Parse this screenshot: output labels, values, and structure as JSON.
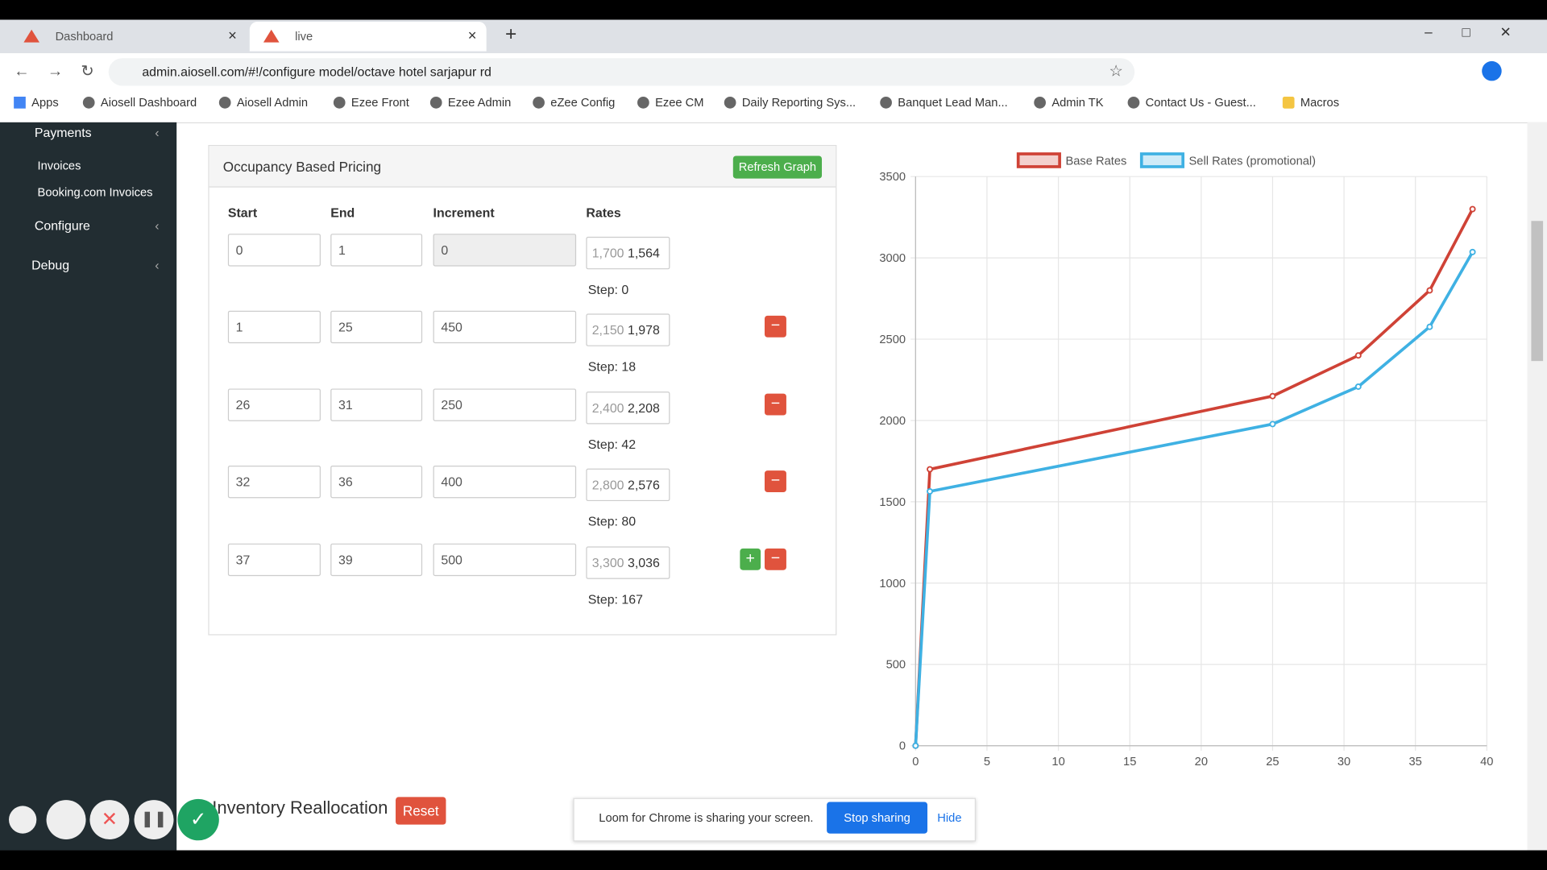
{
  "tabs": [
    {
      "title": "Dashboard"
    },
    {
      "title": "live"
    }
  ],
  "address": "admin.aiosell.com/#!/configure model/octave hotel sarjapur rd",
  "bookmarks": [
    "Apps",
    "Aiosell Dashboard",
    "Aiosell Admin",
    "Ezee Front",
    "Ezee Admin",
    "eZee Config",
    "Ezee CM",
    "Daily Reporting Sys...",
    "Banquet Lead Man...",
    "Admin TK",
    "Contact Us - Guest...",
    "Macros"
  ],
  "sidebar": [
    "Payments",
    "Invoices",
    "Booking.com Invoices",
    "Configure",
    "Debug"
  ],
  "panel": {
    "title": "Occupancy Based Pricing",
    "refresh_button": "Refresh Graph",
    "columns": [
      "Start",
      "End",
      "Increment",
      "Rates"
    ],
    "rows": [
      {
        "start": "0",
        "end": "1",
        "increment": "0",
        "base_rate": "1,700",
        "sell_rate": "1,564",
        "step": "Step: 0"
      },
      {
        "start": "1",
        "end": "25",
        "increment": "450",
        "base_rate": "2,150",
        "sell_rate": "1,978",
        "step": "Step: 18"
      },
      {
        "start": "26",
        "end": "31",
        "increment": "250",
        "base_rate": "2,400",
        "sell_rate": "2,208",
        "step": "Step: 42"
      },
      {
        "start": "32",
        "end": "36",
        "increment": "400",
        "base_rate": "2,800",
        "sell_rate": "2,576",
        "step": "Step: 80"
      },
      {
        "start": "37",
        "end": "39",
        "increment": "500",
        "base_rate": "3,300",
        "sell_rate": "3,036",
        "step": "Step: 167"
      }
    ]
  },
  "chart_data": {
    "type": "line",
    "x": [
      0,
      1,
      25,
      31,
      36,
      39
    ],
    "series": [
      {
        "name": "Base Rates",
        "color": "#cf4236",
        "values": [
          0,
          1700,
          2150,
          2400,
          2800,
          3300
        ]
      },
      {
        "name": "Sell Rates (promotional)",
        "color": "#3fb1e3",
        "values": [
          0,
          1564,
          1978,
          2208,
          2576,
          3036
        ]
      }
    ],
    "xlim": [
      0,
      40
    ],
    "xticks": [
      0,
      5,
      10,
      15,
      20,
      25,
      30,
      35,
      40
    ],
    "ylim": [
      0,
      3500
    ],
    "yticks": [
      0,
      500,
      1000,
      1500,
      2000,
      2500,
      3000,
      3500
    ],
    "grid": true,
    "legend": "top"
  },
  "inventory": {
    "title": "Inventory Reallocation",
    "reset": "Reset"
  },
  "loom": {
    "message": "Loom for Chrome is sharing your screen.",
    "stop": "Stop sharing",
    "hide": "Hide"
  }
}
